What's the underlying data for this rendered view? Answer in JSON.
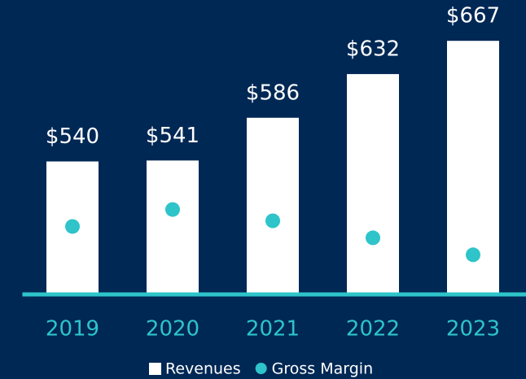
{
  "chart_data": {
    "type": "bar",
    "categories": [
      "2019",
      "2020",
      "2021",
      "2022",
      "2023"
    ],
    "series": [
      {
        "name": "Revenues",
        "color": "#ffffff",
        "values": [
          540,
          541,
          586,
          632,
          667
        ],
        "value_labels": [
          "$540",
          "$541",
          "$586",
          "$632",
          "$667"
        ]
      },
      {
        "name": "Gross Margin",
        "type": "scatter",
        "axis": "y2",
        "color": "#2ec4c9",
        "values": [
          42,
          45,
          43,
          40,
          37
        ],
        "value_labels": [
          "42%",
          "45%",
          "43%",
          "40%",
          "37%"
        ]
      }
    ],
    "ylim": [
      400,
      710
    ],
    "y2lim": [
      30,
      82
    ],
    "background": "#002855",
    "axis_color": "#2ec4c9"
  }
}
